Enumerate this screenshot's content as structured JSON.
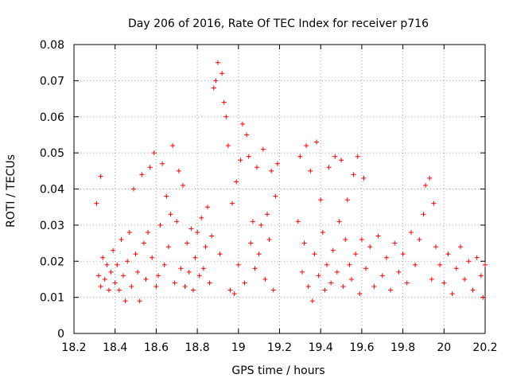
{
  "chart_data": {
    "type": "scatter",
    "title": "Day 206 of 2016, Rate Of TEC Index for receiver p716",
    "xlabel": "GPS time / hours",
    "ylabel": "ROTI / TECUs",
    "xlim": [
      18.2,
      20.2
    ],
    "ylim": [
      0,
      0.08
    ],
    "xticks": [
      "18.2",
      "18.4",
      "18.6",
      "18.8",
      "19",
      "19.2",
      "19.4",
      "19.6",
      "19.8",
      "20",
      "20.2"
    ],
    "yticks": [
      "0",
      "0.01",
      "0.02",
      "0.03",
      "0.04",
      "0.05",
      "0.06",
      "0.07",
      "0.08"
    ],
    "grid": true,
    "marker": "+",
    "color": "#ff0000",
    "series": [
      {
        "name": "p716",
        "points": [
          [
            18.31,
            0.036
          ],
          [
            18.33,
            0.0435
          ],
          [
            18.32,
            0.016
          ],
          [
            18.33,
            0.013
          ],
          [
            18.34,
            0.021
          ],
          [
            18.35,
            0.015
          ],
          [
            18.36,
            0.019
          ],
          [
            18.37,
            0.012
          ],
          [
            18.38,
            0.017
          ],
          [
            18.39,
            0.023
          ],
          [
            18.4,
            0.014
          ],
          [
            18.41,
            0.019
          ],
          [
            18.42,
            0.012
          ],
          [
            18.43,
            0.026
          ],
          [
            18.44,
            0.016
          ],
          [
            18.45,
            0.009
          ],
          [
            18.46,
            0.02
          ],
          [
            18.47,
            0.028
          ],
          [
            18.48,
            0.013
          ],
          [
            18.49,
            0.04
          ],
          [
            18.5,
            0.022
          ],
          [
            18.51,
            0.017
          ],
          [
            18.52,
            0.009
          ],
          [
            18.53,
            0.044
          ],
          [
            18.54,
            0.025
          ],
          [
            18.55,
            0.015
          ],
          [
            18.56,
            0.028
          ],
          [
            18.57,
            0.046
          ],
          [
            18.58,
            0.021
          ],
          [
            18.59,
            0.05
          ],
          [
            18.6,
            0.013
          ],
          [
            18.61,
            0.016
          ],
          [
            18.62,
            0.03
          ],
          [
            18.63,
            0.047
          ],
          [
            18.64,
            0.019
          ],
          [
            18.65,
            0.038
          ],
          [
            18.66,
            0.024
          ],
          [
            18.67,
            0.033
          ],
          [
            18.68,
            0.052
          ],
          [
            18.69,
            0.014
          ],
          [
            18.7,
            0.031
          ],
          [
            18.71,
            0.045
          ],
          [
            18.72,
            0.018
          ],
          [
            18.73,
            0.041
          ],
          [
            18.74,
            0.013
          ],
          [
            18.75,
            0.025
          ],
          [
            18.76,
            0.017
          ],
          [
            18.77,
            0.029
          ],
          [
            18.78,
            0.012
          ],
          [
            18.79,
            0.021
          ],
          [
            18.8,
            0.028
          ],
          [
            18.81,
            0.016
          ],
          [
            18.82,
            0.032
          ],
          [
            18.83,
            0.018
          ],
          [
            18.84,
            0.024
          ],
          [
            18.85,
            0.035
          ],
          [
            18.86,
            0.014
          ],
          [
            18.87,
            0.027
          ],
          [
            18.88,
            0.068
          ],
          [
            18.89,
            0.07
          ],
          [
            18.9,
            0.075
          ],
          [
            18.91,
            0.022
          ],
          [
            18.92,
            0.072
          ],
          [
            18.93,
            0.064
          ],
          [
            18.94,
            0.06
          ],
          [
            18.95,
            0.052
          ],
          [
            18.96,
            0.012
          ],
          [
            18.97,
            0.036
          ],
          [
            18.98,
            0.011
          ],
          [
            18.99,
            0.042
          ],
          [
            19.0,
            0.019
          ],
          [
            19.01,
            0.048
          ],
          [
            19.02,
            0.058
          ],
          [
            19.03,
            0.014
          ],
          [
            19.04,
            0.055
          ],
          [
            19.05,
            0.049
          ],
          [
            19.06,
            0.025
          ],
          [
            19.07,
            0.031
          ],
          [
            19.08,
            0.018
          ],
          [
            19.09,
            0.046
          ],
          [
            19.1,
            0.022
          ],
          [
            19.11,
            0.03
          ],
          [
            19.12,
            0.051
          ],
          [
            19.13,
            0.015
          ],
          [
            19.14,
            0.033
          ],
          [
            19.15,
            0.026
          ],
          [
            19.16,
            0.045
          ],
          [
            19.17,
            0.012
          ],
          [
            19.18,
            0.038
          ],
          [
            19.19,
            0.047
          ],
          [
            19.29,
            0.031
          ],
          [
            19.3,
            0.049
          ],
          [
            19.31,
            0.017
          ],
          [
            19.32,
            0.025
          ],
          [
            19.33,
            0.052
          ],
          [
            19.34,
            0.013
          ],
          [
            19.35,
            0.045
          ],
          [
            19.36,
            0.009
          ],
          [
            19.37,
            0.022
          ],
          [
            19.38,
            0.053
          ],
          [
            19.39,
            0.016
          ],
          [
            19.4,
            0.037
          ],
          [
            19.41,
            0.028
          ],
          [
            19.42,
            0.012
          ],
          [
            19.43,
            0.019
          ],
          [
            19.44,
            0.046
          ],
          [
            19.45,
            0.014
          ],
          [
            19.46,
            0.023
          ],
          [
            19.47,
            0.049
          ],
          [
            19.48,
            0.017
          ],
          [
            19.49,
            0.031
          ],
          [
            19.5,
            0.048
          ],
          [
            19.51,
            0.013
          ],
          [
            19.52,
            0.026
          ],
          [
            19.53,
            0.037
          ],
          [
            19.54,
            0.019
          ],
          [
            19.55,
            0.015
          ],
          [
            19.56,
            0.044
          ],
          [
            19.57,
            0.022
          ],
          [
            19.58,
            0.049
          ],
          [
            19.59,
            0.011
          ],
          [
            19.6,
            0.026
          ],
          [
            19.61,
            0.043
          ],
          [
            19.62,
            0.018
          ],
          [
            19.64,
            0.024
          ],
          [
            19.66,
            0.013
          ],
          [
            19.68,
            0.027
          ],
          [
            19.7,
            0.016
          ],
          [
            19.72,
            0.021
          ],
          [
            19.74,
            0.012
          ],
          [
            19.76,
            0.025
          ],
          [
            19.78,
            0.017
          ],
          [
            19.8,
            0.022
          ],
          [
            19.82,
            0.014
          ],
          [
            19.84,
            0.028
          ],
          [
            19.86,
            0.019
          ],
          [
            19.88,
            0.026
          ],
          [
            19.9,
            0.033
          ],
          [
            19.91,
            0.041
          ],
          [
            19.93,
            0.043
          ],
          [
            19.94,
            0.015
          ],
          [
            19.95,
            0.036
          ],
          [
            19.96,
            0.024
          ],
          [
            19.98,
            0.019
          ],
          [
            20.0,
            0.014
          ],
          [
            20.02,
            0.022
          ],
          [
            20.04,
            0.011
          ],
          [
            20.06,
            0.018
          ],
          [
            20.08,
            0.024
          ],
          [
            20.1,
            0.015
          ],
          [
            20.12,
            0.02
          ],
          [
            20.14,
            0.012
          ],
          [
            20.16,
            0.021
          ],
          [
            20.18,
            0.016
          ],
          [
            20.19,
            0.01
          ],
          [
            20.2,
            0.019
          ]
        ]
      }
    ]
  }
}
